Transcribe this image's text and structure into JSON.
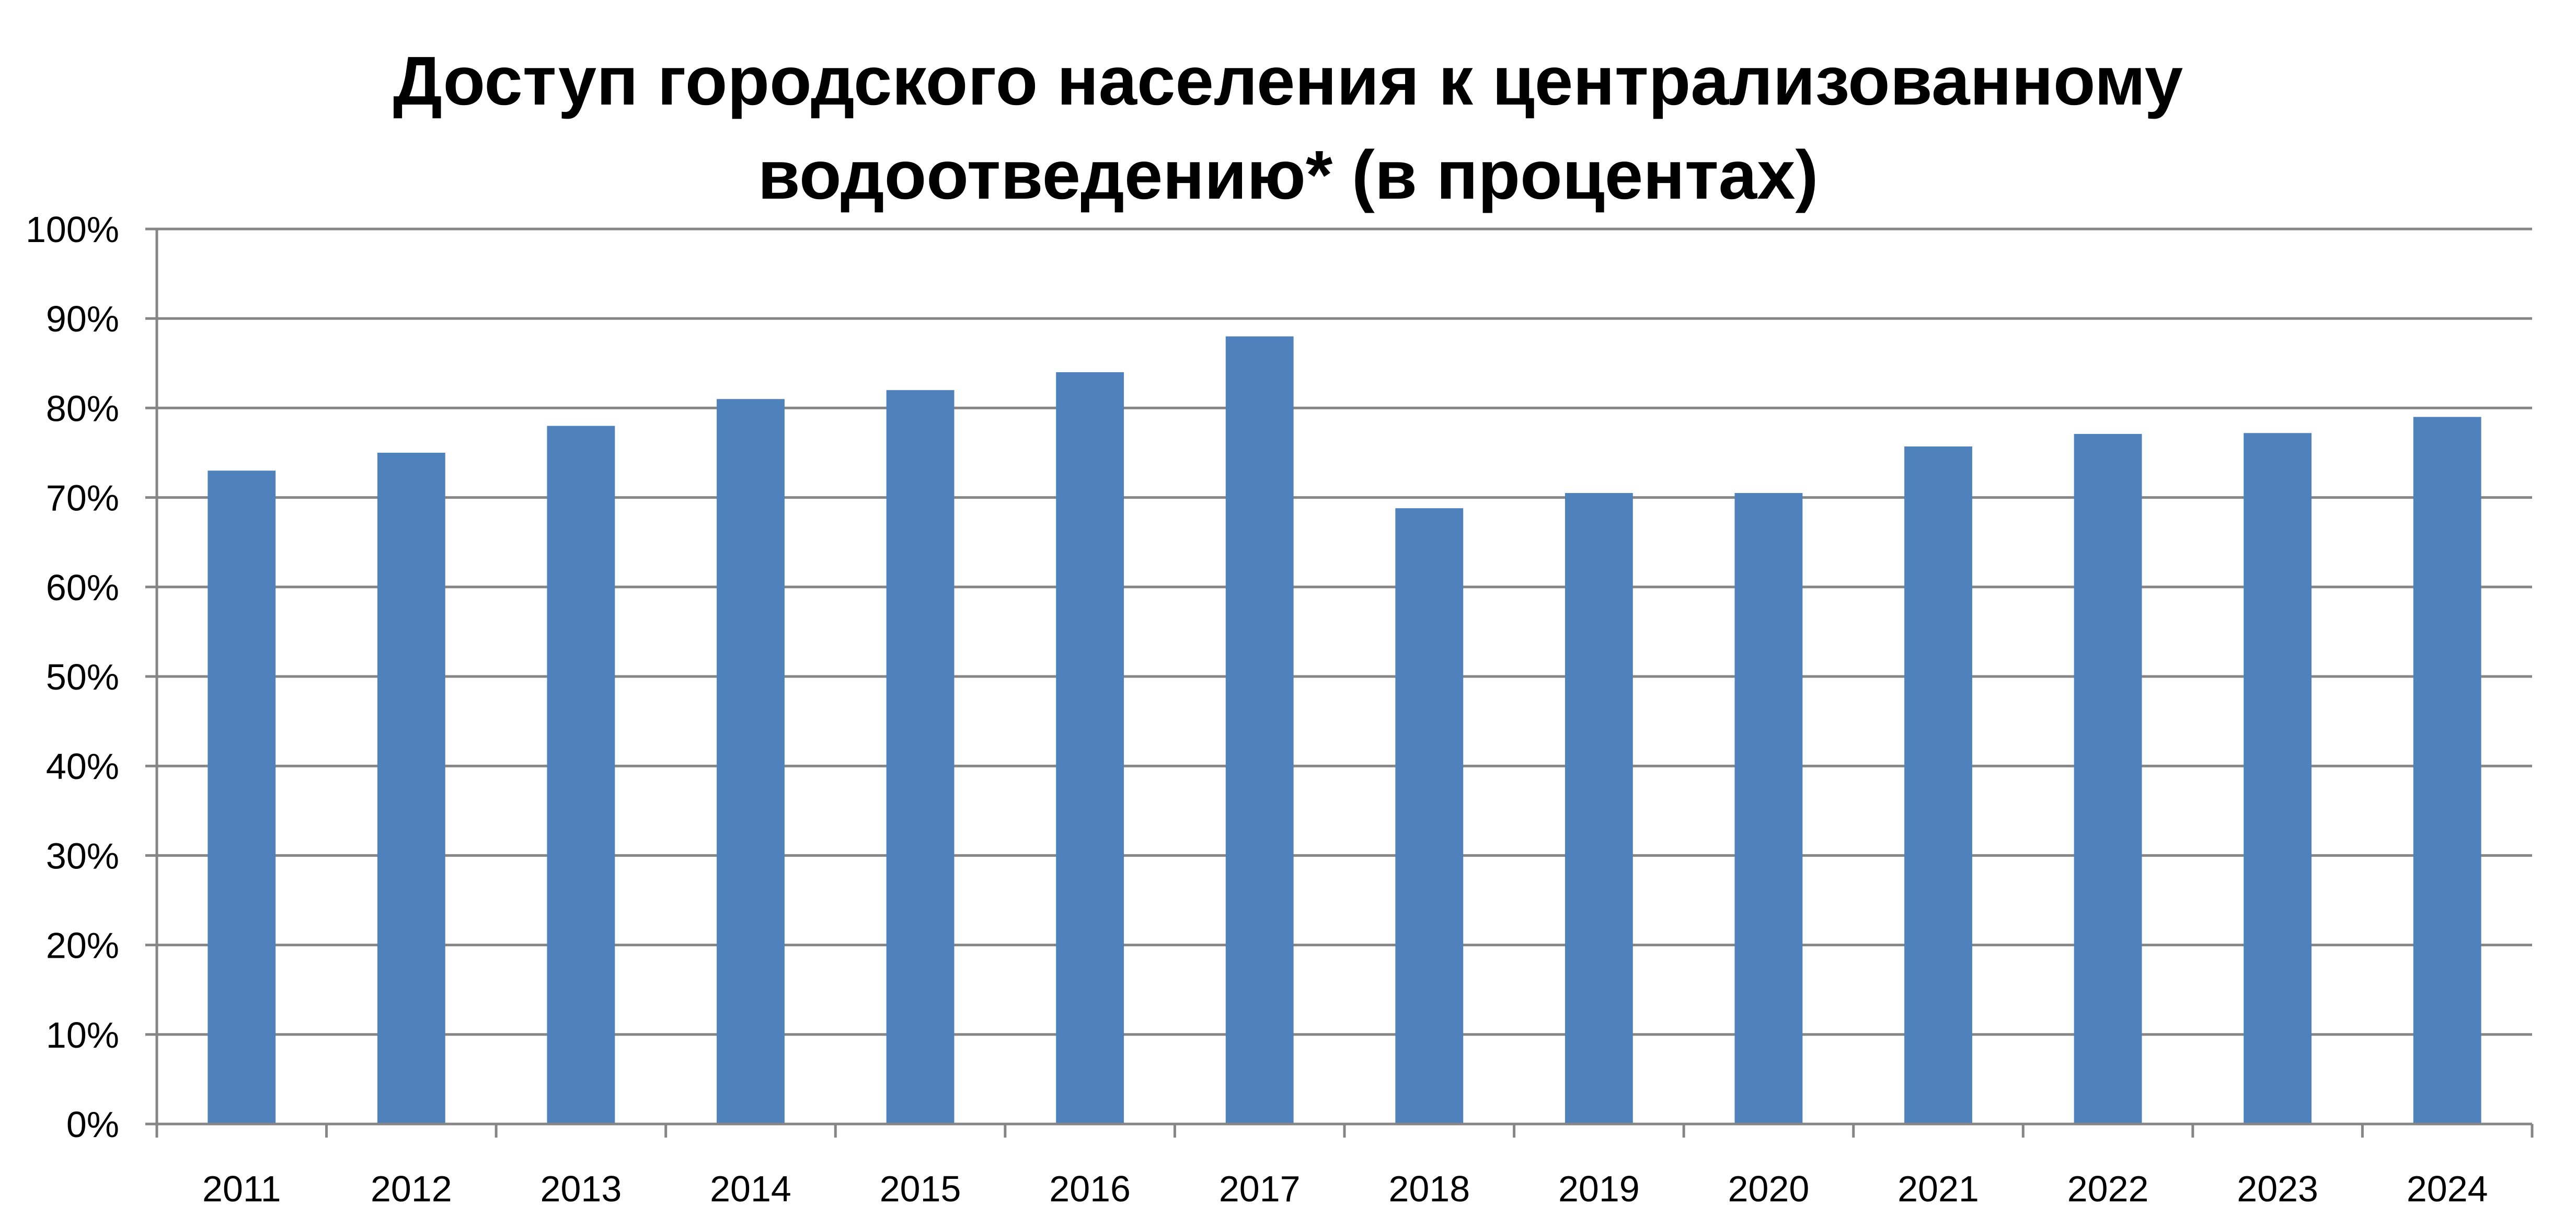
{
  "chart_data": {
    "type": "bar",
    "title_lines": [
      "Доступ городского населения к централизованному",
      "водоотведению* (в процентах)"
    ],
    "categories": [
      "2011",
      "2012",
      "2013",
      "2014",
      "2015",
      "2016",
      "2017",
      "2018",
      "2019",
      "2020",
      "2021",
      "2022",
      "2023",
      "2024"
    ],
    "values": [
      73,
      75,
      78,
      81,
      82,
      84,
      88,
      68.8,
      70.5,
      70.5,
      75.7,
      77.1,
      77.2,
      79
    ],
    "xlabel": "",
    "ylabel": "",
    "ylim": [
      0,
      100
    ],
    "y_ticks": [
      "0%",
      "10%",
      "20%",
      "30%",
      "40%",
      "50%",
      "60%",
      "70%",
      "80%",
      "90%",
      "100%"
    ],
    "grid": true,
    "legend": "none",
    "bar_color": "#4F81BD",
    "grid_color": "#868686"
  }
}
